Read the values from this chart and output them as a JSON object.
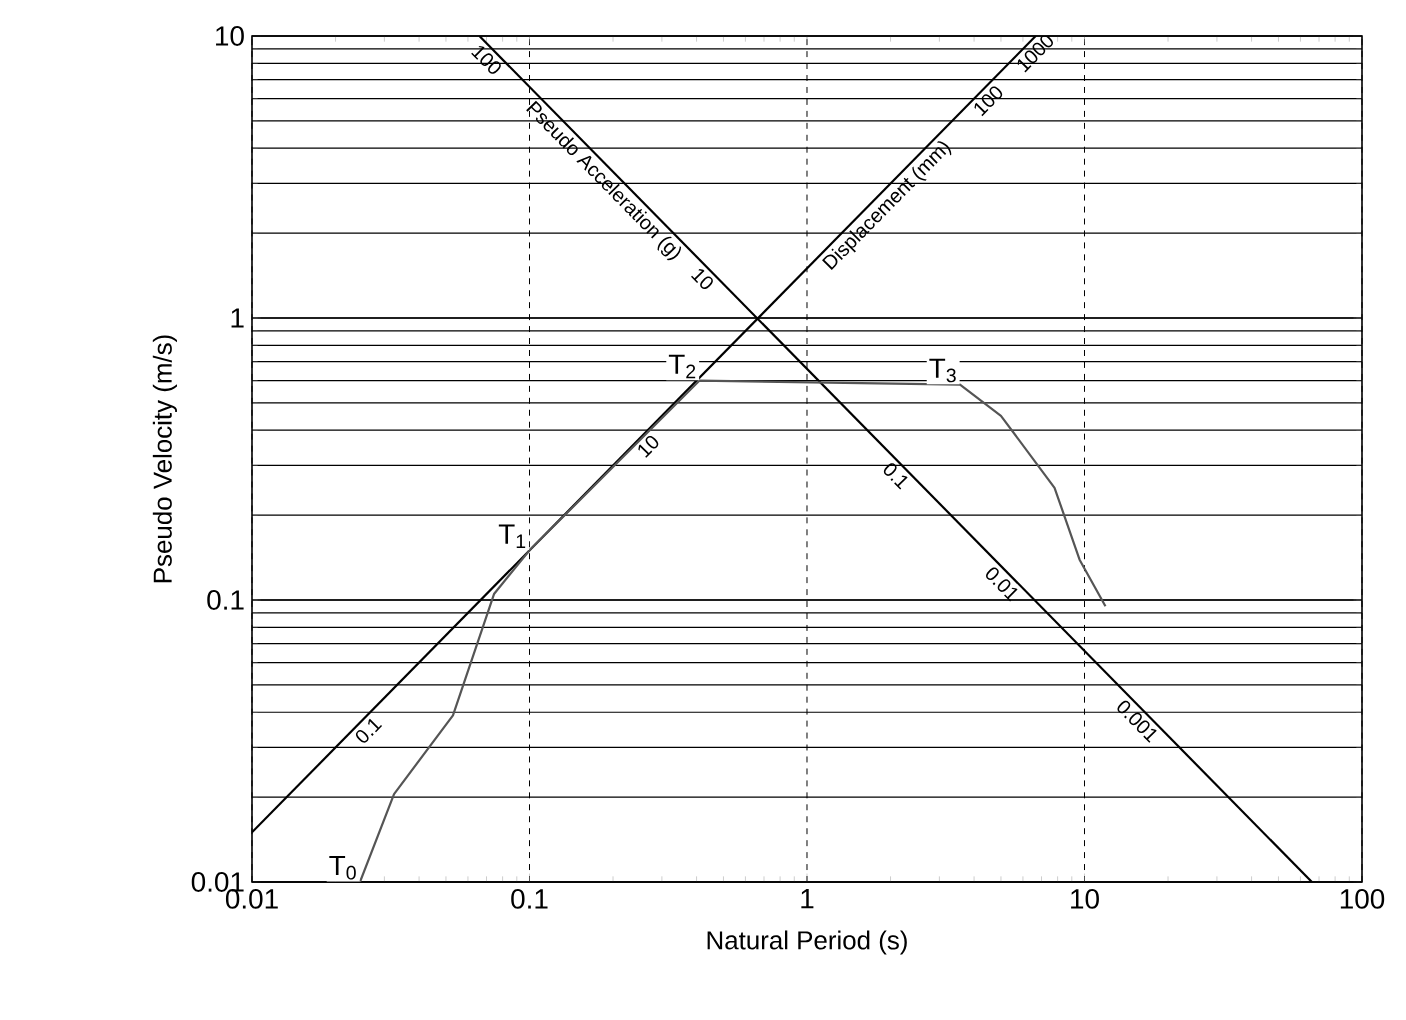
{
  "chart_data": {
    "type": "line",
    "xlabel": "Natural Period (s)",
    "ylabel": "Pseudo Velocity (m/s)",
    "log": "xy",
    "xlim": [
      0.01,
      100
    ],
    "ylim": [
      0.01,
      10
    ],
    "xticks": [
      0.01,
      0.1,
      1,
      10,
      100
    ],
    "yticks": [
      0.01,
      0.1,
      1,
      10
    ],
    "grid": true,
    "series": [
      {
        "color": "#000000",
        "x": [
          0.01,
          6.67
        ],
        "values": [
          0.015,
          10
        ]
      },
      {
        "color": "#000000",
        "x": [
          0.066,
          66
        ],
        "values": [
          10,
          0.01
        ]
      },
      {
        "color": "#555555",
        "x": [
          0.0245,
          0.0325,
          0.053,
          0.0745,
          0.1,
          0.41,
          3.56,
          5,
          7.8,
          9.6,
          11.9
        ],
        "values": [
          0.01,
          0.0205,
          0.039,
          0.105,
          0.15,
          0.6,
          0.58,
          0.45,
          0.25,
          0.139,
          0.095
        ]
      }
    ],
    "annotations": [
      {
        "text": "T$_{0}$",
        "x": 0.0245,
        "y": 0.01
      },
      {
        "text": "T$_{1}$",
        "x": 0.1,
        "y": 0.15
      },
      {
        "text": "T$_{2}$",
        "x": 0.41,
        "y": 0.6
      },
      {
        "text": "T$_{3}$",
        "x": 3.56,
        "y": 0.58
      },
      {
        "text": "Pseudo Acceleration (g)",
        "x": 0.2,
        "y": 3.3
      },
      {
        "text": "100",
        "x": 0.075,
        "y": 8.8
      },
      {
        "text": "10",
        "x": 0.45,
        "y": 1.47
      },
      {
        "text": "0.1",
        "x": 2.24,
        "y": 0.295
      },
      {
        "text": "0.01",
        "x": 5.4,
        "y": 0.122
      },
      {
        "text": "0.001",
        "x": 16.6,
        "y": 0.0398
      },
      {
        "text": "Displacement (mm)",
        "x": 1.8,
        "y": 2.7
      },
      {
        "text": "1000",
        "x": 6.2,
        "y": 9.3
      },
      {
        "text": "100",
        "x": 4.2,
        "y": 6.3
      },
      {
        "text": "10",
        "x": 0.25,
        "y": 0.375
      },
      {
        "text": "0.1",
        "x": 0.0245,
        "y": 0.0368
      }
    ]
  }
}
